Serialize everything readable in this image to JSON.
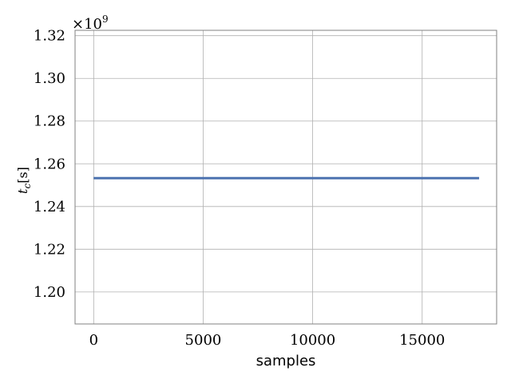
{
  "chart_data": {
    "type": "line",
    "xlabel": "samples",
    "ylabel": "t_c[s]",
    "ylabel_main": "t",
    "ylabel_sub": "c",
    "ylabel_unit": "[s]",
    "y_offset_text": "×10",
    "y_offset_exponent": "9",
    "xlim": [
      -850,
      18400
    ],
    "ylim": [
      1.185,
      1.3225
    ],
    "x_ticks": [
      0,
      5000,
      10000,
      15000
    ],
    "x_tick_labels": [
      "0",
      "5000",
      "10000",
      "15000"
    ],
    "y_ticks": [
      1.2,
      1.22,
      1.24,
      1.26,
      1.28,
      1.3,
      1.32
    ],
    "y_tick_labels": [
      "1.20",
      "1.22",
      "1.24",
      "1.26",
      "1.28",
      "1.30",
      "1.32"
    ],
    "grid": true,
    "series": [
      {
        "color": "#4c72b0",
        "x": [
          0,
          17600
        ],
        "y": [
          1.2533,
          1.2533
        ]
      }
    ]
  }
}
